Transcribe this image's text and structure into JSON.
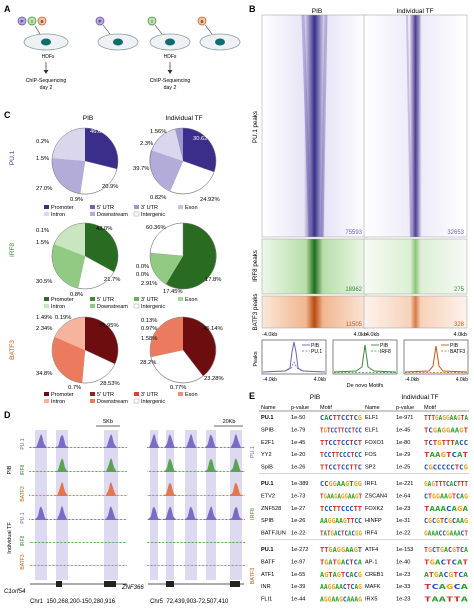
{
  "panels": {
    "A": "A",
    "B": "B",
    "C": "C",
    "D": "D",
    "E": "E"
  },
  "panelA": {
    "circle_labels": [
      "P",
      "I",
      "B"
    ],
    "hdfs_label": "HDFs",
    "chip_label": "ChIP-Sequencing",
    "day_label": "day 2",
    "cells": [
      {
        "circles": [
          "P",
          "I",
          "B"
        ]
      },
      {
        "circles": [
          "P"
        ]
      },
      {
        "circles": [
          "I"
        ]
      },
      {
        "circles": [
          "B"
        ]
      }
    ]
  },
  "panelB": {
    "col_titles": [
      "PIB",
      "Individual TF"
    ],
    "rows": [
      {
        "label": "PU.1 peaks",
        "counts": [
          "75593",
          "32653"
        ],
        "color": "#4b3a8f"
      },
      {
        "label": "IRF8 peaks",
        "counts": [
          "18962",
          "275"
        ],
        "color": "#3a8c3a"
      },
      {
        "label": "BATF3 peaks",
        "counts": [
          "11505",
          "328"
        ],
        "color": "#c65a12"
      }
    ],
    "x_ticks": [
      "-4.0kb",
      "4.0kb"
    ],
    "profile_ylabel": "Peaks",
    "profile_xlabel": "De novo Motifs",
    "profile_legends": [
      {
        "a": "PIB",
        "b": "PU.1"
      },
      {
        "a": "PIB",
        "b": "IRF8"
      },
      {
        "a": "PIB",
        "b": "BATF3"
      }
    ]
  },
  "panelC": {
    "col_titles": [
      "PIB",
      "Individual TF"
    ],
    "tf_labels": [
      "PU.1",
      "IRF8",
      "BATF3"
    ],
    "legend": [
      "Promoter",
      "5' UTR",
      "3' UTR",
      "Exon",
      "Intron",
      "Downstream",
      "Intergenic"
    ],
    "pies": {
      "pu1_pib": [
        "46.6%",
        "0.2%",
        "1.5%",
        "0.9%",
        "20.9%",
        "27.0%"
      ],
      "pu1_ind": [
        "1.56%",
        "30.62%",
        "2.3%",
        "39.7%",
        "0.82%",
        "24.92%"
      ],
      "irf8_pib": [
        "43.0%",
        "0.1%",
        "1.5%",
        "0.8%",
        "21.7%",
        "30.5%"
      ],
      "irf8_ind": [
        "60.36%",
        "0.0%",
        "0.0%",
        "2.91%",
        "17.45%",
        "17.8%"
      ],
      "batf3_pib": [
        "31.95%",
        "1.49%",
        "0.19%",
        "2.34%",
        "34.8%",
        "0.7%",
        "28.53%"
      ],
      "batf3_ind": [
        "45.14%",
        "0.13%",
        "0.97%",
        "1.58%",
        "0.77%",
        "23.28%",
        "28.2%"
      ]
    }
  },
  "panelD": {
    "scale_left": "5Kb",
    "scale_right": "20Kb",
    "group_labels": [
      "PIB",
      "Individual TF"
    ],
    "track_labels": [
      "PU.1",
      "IRF8",
      "BATF3",
      "PU.1",
      "IRF8",
      "BATF3"
    ],
    "genes": [
      "C1orf54",
      "ZNF366"
    ],
    "coords": [
      "Chr1  150,268,200-150,280,916",
      "Chr5  72,439,903-72,507,410"
    ]
  },
  "panelE": {
    "group_titles": [
      "PIB",
      "Individual TF"
    ],
    "headers": [
      "Name",
      "p-value",
      "Motif",
      "Name",
      "p-value",
      "Motif"
    ],
    "side_labels": [
      "PU.1",
      "IRF8",
      "BATF3"
    ],
    "rows": [
      [
        "PU.1",
        "1e-50",
        "ELF1",
        "1e-971"
      ],
      [
        "SPIB",
        "1e-79",
        "ELF1",
        "1e-45"
      ],
      [
        "E2F1",
        "1e-45",
        "FOXO1",
        "1e-80"
      ],
      [
        "YY2",
        "1e-20",
        "FOS",
        "1e-29"
      ],
      [
        "SpiB",
        "1e-26",
        "SP2",
        "1e-25"
      ],
      [
        "PU.1",
        "1e-389",
        "IRF1",
        "1e-221"
      ],
      [
        "ETV2",
        "1e-73",
        "ZSCAN4",
        "1e-64"
      ],
      [
        "ZNF528",
        "1e-27",
        "FOXK2",
        "1e-23"
      ],
      [
        "SPIB",
        "1e-26",
        "HINFP",
        "1e-31"
      ],
      [
        "BATFJUN",
        "1e-22",
        "IRF4",
        "1e-22"
      ],
      [
        "PU.1",
        "1e-272",
        "ATF4",
        "1e-153"
      ],
      [
        "BATF",
        "1e-97",
        "AP-1",
        "1e-40"
      ],
      [
        "ATF1",
        "1e-55",
        "CREB1",
        "1e-23"
      ],
      [
        "INR",
        "1e-39",
        "MAFK",
        "1e-33"
      ],
      [
        "FLI1",
        "1e-44",
        "IRX5",
        "1e-23"
      ]
    ],
    "motifs": [
      [
        "CACTTCCTCG",
        "TTTGAGGAAGTA"
      ],
      [
        "TGTCCTTCCTCC",
        "TCGAGGAAGT"
      ],
      [
        "TTCCTCCTCT",
        "TCTGTTTACC"
      ],
      [
        "TCCTTCCCTCC",
        "TAAGTCAT"
      ],
      [
        "TTCCTCCTTC",
        "CGCCCCCTCG"
      ],
      [
        "CCGGAAGTGG",
        "GAGTTTCACTTT"
      ],
      [
        "TGAAGAGGAAGT",
        "CTGGAAGTCAG"
      ],
      [
        "TCCTTCCCTT",
        "TAAACAGA"
      ],
      [
        "AAGGAAGTTCC",
        "CGCGTCGCAAG"
      ],
      [
        "TATGACTCACGG",
        "GAAACCGAAACT"
      ],
      [
        "TTGAGGAAGT",
        "TGCTGACGTCA"
      ],
      [
        "TGATGACTCA",
        "TGACTCAT"
      ],
      [
        "AGTAGTCACG",
        "ATGACGTCA"
      ],
      [
        "AAGGAACTCAG",
        "TCAGCA"
      ],
      [
        "AGGAAGCAAAG",
        "TAATTA"
      ]
    ]
  },
  "colors": {
    "promoter_pu1": "#3b2e8a",
    "utr5_pu1": "#6f63b5",
    "utr3_pu1": "#9e97cf",
    "exon_pu1": "#c6c2e6",
    "intron_pu1": "#d9d6ee",
    "downstream_pu1": "#b3acd8",
    "intergenic": "#ffffff",
    "promoter_irf8": "#2a6b22",
    "utr5_irf8": "#3f8c34",
    "utr3_irf8": "#6bb35c",
    "exon_irf8": "#a8d79c",
    "intron_irf8": "#c9e6c0",
    "downstream_irf8": "#92c983",
    "promoter_batf3": "#6d0d10",
    "utr5_batf3": "#a3191c",
    "utr3_batf3": "#d7443a",
    "exon_batf3": "#f08a72",
    "intron_batf3": "#f6b39e",
    "downstream_batf3": "#eb7a5e",
    "track_pu1": "#7a6cc4",
    "track_irf8": "#5aa352",
    "track_batf3": "#e0774f",
    "highlight": "#dcd9f0"
  }
}
